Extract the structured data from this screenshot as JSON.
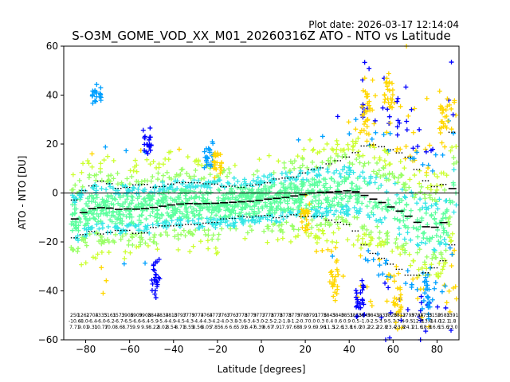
{
  "chart_data": {
    "type": "scatter",
    "plot_date": "Plot date: 2026-03-17 12:14:04",
    "title": "S-O3M_GOME_VOD_XX_M01_20260316Z ATO - NTO vs Latitude",
    "xlabel": "Latitude [degrees]",
    "ylabel": "ATO - NTO [DU]",
    "xlim": [
      -90,
      90
    ],
    "ylim": [
      -60,
      60
    ],
    "xticks": [
      -80,
      -60,
      -40,
      -20,
      0,
      20,
      40,
      60,
      80
    ],
    "yticks": [
      -60,
      -40,
      -20,
      0,
      20,
      40,
      60
    ],
    "grid": false,
    "zero_line": 0,
    "marker": "+",
    "color_scale": [
      "#0000ff",
      "#00a0ff",
      "#33e6e6",
      "#5cff9e",
      "#99ff66",
      "#ccff33",
      "#ffd700"
    ],
    "bins": {
      "lat": [
        -85,
        -81,
        -77,
        -73,
        -69,
        -65,
        -61,
        -57,
        -53,
        -49,
        -45,
        -41,
        -37,
        -33,
        -29,
        -25,
        -21,
        -17,
        -13,
        -9,
        -5,
        -1,
        3,
        7,
        11,
        15,
        19,
        23,
        27,
        31,
        35,
        39,
        43,
        47,
        51,
        55,
        59,
        63,
        67,
        71,
        75,
        79,
        83,
        87
      ],
      "mean": [
        -10.6,
        -8.0,
        -6.4,
        -6.0,
        -6.2,
        -6.7,
        -6.5,
        -6.6,
        -6.4,
        -5.9,
        -5.4,
        -4.9,
        -4.5,
        -4.3,
        -4.4,
        -4.3,
        -4.2,
        -4.0,
        -3.8,
        -3.6,
        -3.4,
        -3.0,
        -2.5,
        -2.2,
        -1.8,
        -1.2,
        -0.7,
        0.0,
        0.3,
        0.4,
        0.6,
        0.9,
        0.5,
        -1.0,
        -2.5,
        -3.9,
        -5.7,
        -7.4,
        -9.5,
        -12.0,
        -13.8,
        -14.0,
        -12.1,
        1.8
      ],
      "std": [
        7.71,
        9.01,
        9.31,
        10.77,
        10.0,
        8.6,
        8.75,
        9.9,
        9.9,
        8.22,
        8.02,
        8.54,
        8.71,
        8.55,
        8.56,
        8.05,
        7.85,
        6.6,
        6.6,
        5.91,
        6.47,
        6.39,
        6.67,
        7.91,
        7.9,
        7.68,
        8.9,
        9.6,
        9.96,
        11.5,
        12.6,
        13.8,
        16.0,
        20.2,
        22.2,
        22.8,
        23.4,
        23.8,
        24.1,
        21.6,
        18.8,
        16.6,
        15.6,
        23.0
      ],
      "count_labels": [
        "250",
        "1261",
        "2704",
        "3335",
        "3161",
        "3573",
        "3906",
        "3909",
        "3908",
        "3844",
        "3834",
        "3810",
        "3797",
        "3779",
        "3774",
        "3764",
        "3777",
        "3767",
        "3767",
        "3778",
        "3779",
        "3777",
        "3778",
        "3778",
        "3778",
        "3779",
        "3780",
        "3791",
        "3776",
        "3845",
        "3840",
        "3851",
        "3855",
        "3849",
        "3841",
        "3837",
        "3826",
        "3812",
        "3799",
        "3784",
        "3733",
        "3159",
        "2583",
        "1391"
      ],
      "mean_labels": [
        "-10.6",
        "-8.0",
        "-6.4",
        "-6.0",
        "-6.2",
        "-6.7",
        "-6.5",
        "-6.6",
        "-6.4",
        "-5.9",
        "-5.4",
        "-4.9",
        "-4.5",
        "-4.3",
        "-4.4",
        "-4.3",
        "-4.2",
        "-4.0",
        "-3.8",
        "-3.6",
        "-3.4",
        "-3.0",
        "-2.5",
        "-2.2",
        "-1.8",
        "-1.2",
        "-0.7",
        "0.0",
        "0.3",
        "0.4",
        "0.6",
        "0.9",
        "0.5",
        "-1.0",
        "-2.5",
        "-3.9",
        "-5.7",
        "-7.4",
        "-9.5",
        "-12.0",
        "-13.8",
        "-14.0",
        "-12.1",
        "1.8"
      ],
      "std_labels": [
        "7.71",
        "9.01",
        "9.31",
        "10.77",
        "10.0",
        "8.6",
        "8.75",
        "9.9",
        "9.9",
        "8.22",
        "8.02",
        "8.54",
        "8.71",
        "8.55",
        "8.56",
        "8.05",
        "7.85",
        "6.6",
        "6.6",
        "5.91",
        "6.47",
        "6.39",
        "6.67",
        "7.91",
        "7.9",
        "7.68",
        "8.9",
        "9.6",
        "9.96",
        "11.5",
        "12.6",
        "13.8",
        "16.0",
        "20.2",
        "22.2",
        "22.8",
        "23.4",
        "23.8",
        "24.1",
        "21.6",
        "18.8",
        "16.6",
        "15.6",
        "23.0"
      ]
    },
    "clusters": [
      {
        "lat": -75,
        "center": 40,
        "spread": 3,
        "color": "#00a0ff"
      },
      {
        "lat": -52,
        "center": 20,
        "spread": 5,
        "color": "#0000ff"
      },
      {
        "lat": -48,
        "center": -33,
        "spread": 7,
        "color": "#0000ff"
      },
      {
        "lat": -24,
        "center": 15,
        "spread": 6,
        "color": "#00a0ff"
      },
      {
        "lat": -20,
        "center": 12,
        "spread": 5,
        "color": "#ffd700"
      },
      {
        "lat": 20,
        "center": -10,
        "spread": 6,
        "color": "#ffd700"
      },
      {
        "lat": 33,
        "center": -34,
        "spread": 8,
        "color": "#ffd700"
      },
      {
        "lat": 48,
        "center": 35,
        "spread": 10,
        "color": "#ffd700"
      },
      {
        "lat": 58,
        "center": 42,
        "spread": 8,
        "color": "#ffd700"
      },
      {
        "lat": 62,
        "center": -45,
        "spread": 9,
        "color": "#ffd700"
      },
      {
        "lat": 45,
        "center": -45,
        "spread": 6,
        "color": "#0000ff"
      },
      {
        "lat": 75,
        "center": -40,
        "spread": 8,
        "color": "#00a0ff"
      },
      {
        "lat": 83,
        "center": 30,
        "spread": 10,
        "color": "#ffd700"
      }
    ]
  }
}
